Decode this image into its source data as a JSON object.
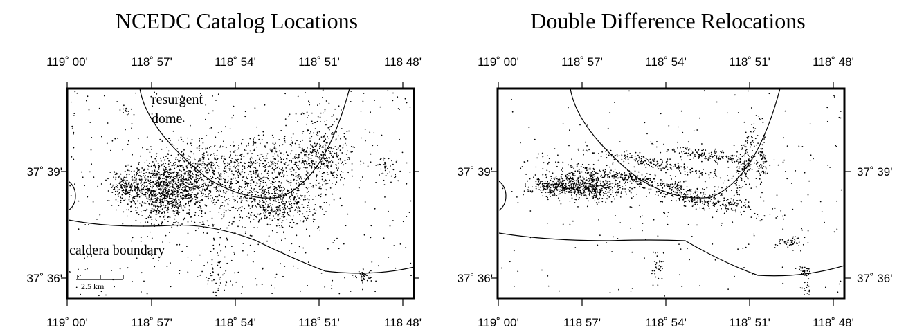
{
  "panels": [
    {
      "title": "NCEDC Catalog Locations",
      "lon_ticks": [
        "119˚ 00'",
        "118˚ 57'",
        "118˚ 54'",
        "118˚ 51'",
        "118 48'"
      ],
      "lat_ticks": [
        "37˚ 39'",
        "37˚ 36'"
      ],
      "labels": {
        "dome_line1": "resurgent",
        "dome_line2": "dome",
        "caldera": "caldera boundary",
        "scale": "2.5 km"
      },
      "style": "diffuse"
    },
    {
      "title": "Double Difference Relocations",
      "lon_ticks": [
        "119˚ 00'",
        "118 57'",
        "118˚ 54'",
        "118˚ 51'",
        "118˚ 48'"
      ],
      "lat_ticks": [
        "37˚ 39'",
        "37˚ 36'"
      ],
      "style": "sharp"
    }
  ],
  "colors": {
    "ink": "#000000",
    "background": "#ffffff"
  }
}
